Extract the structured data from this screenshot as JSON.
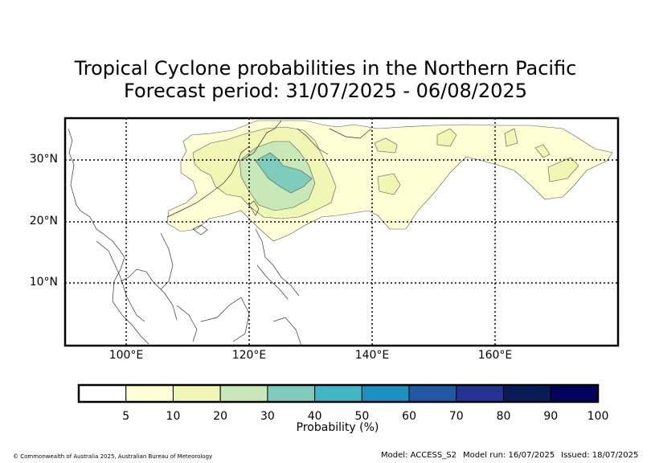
{
  "title_line1": "Tropical Cyclone probabilities in the Northern Pacific",
  "title_line2": "Forecast period: 31/07/2025 - 06/08/2025",
  "lat_labels": [
    "30°N",
    "20°N",
    "10°N"
  ],
  "lon_labels": [
    "100°E",
    "120°E",
    "140°E",
    "160°E"
  ],
  "colorbar": {
    "ticks": [
      "5",
      "10",
      "20",
      "30",
      "40",
      "50",
      "60",
      "70",
      "80",
      "90",
      "100"
    ],
    "colors": [
      "#ffffff",
      "#ffffd6",
      "#eef7b4",
      "#c8e8b8",
      "#80ccbc",
      "#41b6c4",
      "#1d8fc0",
      "#2259a6",
      "#253494",
      "#081d58",
      "#03035f"
    ],
    "label": "Probability (%)"
  },
  "footer": {
    "copyright": "© Commonwealth of Australia 2025, Australian Bureau of Meteorology",
    "model": "Model: ACCESS_S2",
    "model_run": "Model run: 16/07/2025",
    "issued": "Issued: 18/07/2025"
  },
  "map_extent": {
    "lon_min": 90,
    "lon_max": 180,
    "lat_min": 0,
    "lat_max": 37
  }
}
